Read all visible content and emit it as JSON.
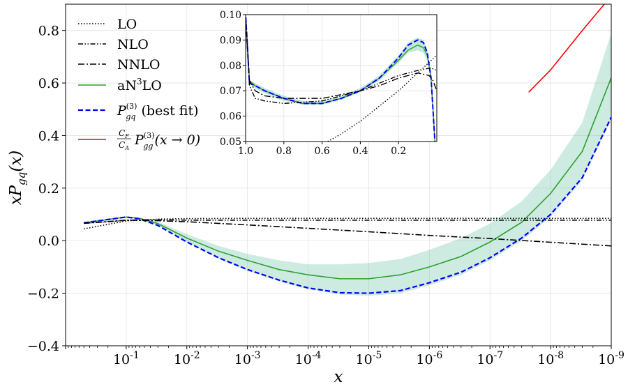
{
  "chart_data": {
    "type": "line",
    "xlabel": "x",
    "ylabel": "xP_gq(x)",
    "x_scale": "log",
    "x_reversed": true,
    "xlim": [
      1.0,
      1e-09
    ],
    "ylim": [
      -0.4,
      0.9
    ],
    "x_tick_labels": [
      {
        "exp": "-1",
        "base": "10"
      },
      {
        "exp": "-2",
        "base": "10"
      },
      {
        "exp": "-3",
        "base": "10"
      },
      {
        "exp": "-4",
        "base": "10"
      },
      {
        "exp": "-5",
        "base": "10"
      },
      {
        "exp": "-6",
        "base": "10"
      },
      {
        "exp": "-7",
        "base": "10"
      },
      {
        "exp": "-8",
        "base": "10"
      },
      {
        "exp": "-9",
        "base": "10"
      }
    ],
    "y_ticks": [
      -0.4,
      -0.2,
      0.0,
      0.2,
      0.4,
      0.6,
      0.8
    ],
    "y_tick_labels": [
      "−0.4",
      "−0.2",
      "0.0",
      "0.2",
      "0.4",
      "0.6",
      "0.8"
    ],
    "grid": true,
    "legend_position": "top-left",
    "legend": [
      {
        "key": "lo",
        "label": "LO",
        "style": "dotted",
        "color": "#000000"
      },
      {
        "key": "nlo",
        "label": "NLO",
        "style": "dash-dot-dot",
        "color": "#000000"
      },
      {
        "key": "nnlo",
        "label": "NNLO",
        "style": "dash-dot",
        "color": "#000000"
      },
      {
        "key": "an3lo",
        "label_main": "aN",
        "label_sup": "3",
        "label_end": "LO",
        "style": "solid",
        "color": "#2ca02c"
      },
      {
        "key": "bestfit",
        "label_main": "P",
        "label_sup": "(3)",
        "label_sub": "gq",
        "label_end": " (best fit)",
        "style": "dashed",
        "color": "#0000ff"
      },
      {
        "key": "asym",
        "label_frac_num": "C",
        "label_frac_num_sub": "F",
        "label_frac_den": "C",
        "label_frac_den_sub": "A",
        "label_main": "P",
        "label_sup": "(3)",
        "label_sub": "gg",
        "label_end": "(x → 0)",
        "style": "solid",
        "color": "#ff0000"
      }
    ],
    "band_color": "#66c2a5",
    "series": [
      {
        "name": "LO",
        "key": "lo",
        "x": [
          0.5,
          0.1,
          0.03,
          0.01,
          0.001,
          1e-05,
          1e-07,
          1e-09
        ],
        "y": [
          0.045,
          0.075,
          0.082,
          0.084,
          0.085,
          0.085,
          0.085,
          0.085
        ]
      },
      {
        "name": "NLO",
        "key": "nlo",
        "x": [
          0.5,
          0.2,
          0.1,
          0.05,
          0.02,
          0.01,
          0.001,
          1e-05,
          1e-07,
          1e-09
        ],
        "y": [
          0.066,
          0.072,
          0.078,
          0.079,
          0.079,
          0.078,
          0.078,
          0.078,
          0.078,
          0.078
        ]
      },
      {
        "name": "NNLO",
        "key": "nnlo",
        "x": [
          0.5,
          0.1,
          0.03,
          0.01,
          0.001,
          0.0001,
          1e-05,
          1e-06,
          1e-07,
          1e-08,
          1e-09
        ],
        "y": [
          0.066,
          0.078,
          0.076,
          0.072,
          0.06,
          0.047,
          0.034,
          0.02,
          0.008,
          -0.006,
          -0.02
        ]
      },
      {
        "name": "aN3LO",
        "key": "an3lo",
        "x": [
          0.5,
          0.1,
          0.06,
          0.03,
          0.01,
          0.003,
          0.001,
          0.0003,
          0.0001,
          3e-05,
          1e-05,
          3e-06,
          1e-06,
          3e-07,
          1e-07,
          3e-08,
          1e-08,
          3e-09,
          1e-09
        ],
        "y": [
          0.068,
          0.09,
          0.085,
          0.065,
          0.01,
          -0.04,
          -0.075,
          -0.11,
          -0.13,
          -0.145,
          -0.145,
          -0.13,
          -0.1,
          -0.06,
          -0.005,
          0.07,
          0.18,
          0.34,
          0.62
        ]
      },
      {
        "name": "best fit",
        "key": "bestfit",
        "x": [
          0.5,
          0.1,
          0.06,
          0.03,
          0.01,
          0.003,
          0.001,
          0.0003,
          0.0001,
          3e-05,
          1e-05,
          3e-06,
          1e-06,
          3e-07,
          1e-07,
          3e-08,
          1e-08,
          3e-09,
          1e-09
        ],
        "y": [
          0.068,
          0.09,
          0.083,
          0.058,
          -0.005,
          -0.065,
          -0.11,
          -0.15,
          -0.18,
          -0.198,
          -0.2,
          -0.19,
          -0.16,
          -0.12,
          -0.065,
          0.01,
          0.1,
          0.24,
          0.47
        ]
      },
      {
        "name": "asymptotic",
        "key": "asym",
        "x": [
          2.3e-08,
          1e-08,
          3e-09,
          1.3e-09
        ],
        "y": [
          0.565,
          0.65,
          0.8,
          0.9
        ]
      }
    ],
    "band": {
      "key": "an3lo_band",
      "x": [
        0.5,
        0.1,
        0.06,
        0.03,
        0.01,
        0.003,
        0.001,
        0.0003,
        0.0001,
        3e-05,
        1e-05,
        3e-06,
        1e-06,
        3e-07,
        1e-07,
        3e-08,
        1e-08,
        3e-09,
        1e-09
      ],
      "y_low": [
        0.068,
        0.09,
        0.083,
        0.057,
        -0.005,
        -0.068,
        -0.115,
        -0.155,
        -0.185,
        -0.205,
        -0.21,
        -0.2,
        -0.17,
        -0.13,
        -0.075,
        0.0,
        0.09,
        0.23,
        0.46
      ],
      "y_high": [
        0.068,
        0.09,
        0.087,
        0.072,
        0.025,
        -0.02,
        -0.05,
        -0.075,
        -0.09,
        -0.09,
        -0.085,
        -0.07,
        -0.035,
        0.01,
        0.065,
        0.15,
        0.27,
        0.45,
        0.79
      ]
    },
    "inset": {
      "xlim": [
        1.0,
        0.0
      ],
      "ylim": [
        0.05,
        0.1
      ],
      "x_ticks": [
        1.0,
        0.8,
        0.6,
        0.4,
        0.2
      ],
      "x_tick_labels": [
        "1.0",
        "0.8",
        "0.6",
        "0.4",
        "0.2"
      ],
      "y_ticks": [
        0.05,
        0.06,
        0.07,
        0.08,
        0.09,
        0.1
      ],
      "y_tick_labels": [
        "0.05",
        "0.06",
        "0.07",
        "0.08",
        "0.09",
        "0.10"
      ],
      "series": [
        {
          "key": "lo",
          "x": [
            0.57,
            0.5,
            0.4,
            0.3,
            0.2,
            0.1,
            0.0
          ],
          "y": [
            0.05,
            0.053,
            0.058,
            0.064,
            0.07,
            0.077,
            0.084
          ]
        },
        {
          "key": "nlo",
          "x": [
            0.999,
            0.98,
            0.95,
            0.9,
            0.8,
            0.6,
            0.4,
            0.3,
            0.2,
            0.1,
            0.03,
            0.0
          ],
          "y": [
            0.098,
            0.072,
            0.067,
            0.066,
            0.065,
            0.066,
            0.07,
            0.073,
            0.076,
            0.078,
            0.079,
            0.078
          ]
        },
        {
          "key": "nnlo",
          "x": [
            0.999,
            0.98,
            0.95,
            0.9,
            0.8,
            0.6,
            0.4,
            0.3,
            0.2,
            0.1,
            0.04,
            0.02,
            0.0
          ],
          "y": [
            0.098,
            0.074,
            0.07,
            0.068,
            0.067,
            0.067,
            0.07,
            0.072,
            0.075,
            0.077,
            0.076,
            0.074,
            0.07
          ]
        },
        {
          "key": "an3lo",
          "x": [
            0.999,
            0.98,
            0.95,
            0.9,
            0.8,
            0.7,
            0.6,
            0.5,
            0.4,
            0.3,
            0.2,
            0.15,
            0.1,
            0.07,
            0.05,
            0.03,
            0.01
          ],
          "y": [
            0.099,
            0.074,
            0.072,
            0.07,
            0.067,
            0.065,
            0.065,
            0.067,
            0.07,
            0.075,
            0.082,
            0.086,
            0.088,
            0.087,
            0.084,
            0.075,
            0.05
          ]
        },
        {
          "key": "bestfit",
          "x": [
            0.999,
            0.98,
            0.95,
            0.9,
            0.8,
            0.7,
            0.6,
            0.5,
            0.4,
            0.3,
            0.2,
            0.15,
            0.1,
            0.07,
            0.05,
            0.03,
            0.01
          ],
          "y": [
            0.099,
            0.073,
            0.072,
            0.07,
            0.067,
            0.065,
            0.065,
            0.067,
            0.07,
            0.075,
            0.083,
            0.088,
            0.09,
            0.089,
            0.085,
            0.075,
            0.05
          ]
        }
      ],
      "band": {
        "x": [
          0.999,
          0.98,
          0.95,
          0.9,
          0.8,
          0.7,
          0.6,
          0.5,
          0.4,
          0.3,
          0.2,
          0.15,
          0.1,
          0.07,
          0.05,
          0.03,
          0.01
        ],
        "y_low": [
          0.099,
          0.073,
          0.071,
          0.069,
          0.066,
          0.0645,
          0.0645,
          0.0665,
          0.0695,
          0.074,
          0.081,
          0.085,
          0.086,
          0.085,
          0.082,
          0.073,
          0.05
        ],
        "y_high": [
          0.099,
          0.074,
          0.073,
          0.071,
          0.068,
          0.066,
          0.066,
          0.068,
          0.071,
          0.076,
          0.084,
          0.089,
          0.091,
          0.09,
          0.086,
          0.077,
          0.05
        ]
      }
    }
  }
}
